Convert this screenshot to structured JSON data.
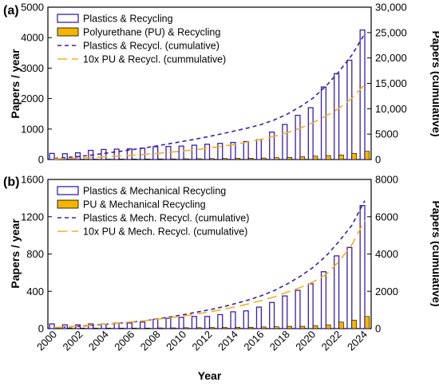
{
  "colors": {
    "plastics_bar": "#3b1fa8",
    "pu_bar_fill": "#f4b400",
    "plastics_cum": "#3b1fa8",
    "pu_cum": "#f0b21b"
  },
  "chart_data": [
    {
      "type": "bar",
      "panel_label": "(a)",
      "categories": [
        "2000",
        "2001",
        "2002",
        "2003",
        "2004",
        "2005",
        "2006",
        "2007",
        "2008",
        "2009",
        "2010",
        "2011",
        "2012",
        "2013",
        "2014",
        "2015",
        "2016",
        "2017",
        "2018",
        "2019",
        "2020",
        "2021",
        "2022",
        "2023",
        "2024"
      ],
      "x_tick_labels": [
        "2000",
        "2002",
        "2004",
        "2006",
        "2008",
        "2010",
        "2012",
        "2014",
        "2016",
        "2018",
        "2020",
        "2022",
        "2024"
      ],
      "xlabel": "Year",
      "ylabel": "Papers / year",
      "ylim": [
        0,
        5000
      ],
      "yticks": [
        0,
        1000,
        2000,
        3000,
        4000,
        5000
      ],
      "y_tick_labels": [
        "0",
        "1000",
        "2000",
        "3000",
        "4000",
        "5000"
      ],
      "y2label": "Papers (cumulative)",
      "y2lim": [
        0,
        30000
      ],
      "y2ticks": [
        0,
        5000,
        10000,
        15000,
        20000,
        25000,
        30000
      ],
      "y2_tick_labels": [
        "0",
        "5000",
        "10,000",
        "15,000",
        "20,000",
        "25,000",
        "30,000"
      ],
      "series": [
        {
          "name": "Plastics & Recycling",
          "kind": "bar",
          "axis": "left",
          "values": [
            200,
            190,
            220,
            300,
            330,
            340,
            350,
            370,
            420,
            430,
            440,
            470,
            500,
            530,
            560,
            590,
            650,
            900,
            1150,
            1450,
            1700,
            2380,
            2820,
            3260,
            4250
          ]
        },
        {
          "name": "Polyurethane (PU) & Recycling",
          "kind": "bar",
          "axis": "left",
          "values": [
            10,
            10,
            10,
            12,
            12,
            15,
            15,
            18,
            20,
            22,
            25,
            28,
            30,
            35,
            40,
            45,
            50,
            60,
            70,
            90,
            110,
            130,
            150,
            200,
            270
          ]
        },
        {
          "name": "Plastics & Recycl. (cumulative)",
          "kind": "line",
          "axis": "right",
          "values": [
            200,
            390,
            610,
            910,
            1240,
            1580,
            1930,
            2300,
            2720,
            3150,
            3590,
            4060,
            4560,
            5090,
            5650,
            6240,
            6890,
            7790,
            8940,
            10390,
            12090,
            14470,
            17290,
            20550,
            24800
          ]
        },
        {
          "name": "10x PU & Recycl. (cummulative)",
          "kind": "line",
          "axis": "right",
          "values": [
            100,
            200,
            300,
            420,
            540,
            690,
            840,
            1020,
            1220,
            1440,
            1690,
            1970,
            2270,
            2620,
            3020,
            3470,
            3970,
            4570,
            5270,
            6170,
            7270,
            8570,
            10070,
            12070,
            14770
          ]
        }
      ]
    },
    {
      "type": "bar",
      "panel_label": "(b)",
      "categories": [
        "2000",
        "2001",
        "2002",
        "2003",
        "2004",
        "2005",
        "2006",
        "2007",
        "2008",
        "2009",
        "2010",
        "2011",
        "2012",
        "2013",
        "2014",
        "2015",
        "2016",
        "2017",
        "2018",
        "2019",
        "2020",
        "2021",
        "2022",
        "2023",
        "2024"
      ],
      "x_tick_labels": [
        "2000",
        "2002",
        "2004",
        "2006",
        "2008",
        "2010",
        "2012",
        "2014",
        "2016",
        "2018",
        "2020",
        "2022",
        "2024"
      ],
      "xlabel": "Year",
      "ylabel": "Papers / year",
      "ylim": [
        0,
        1600
      ],
      "yticks": [
        0,
        400,
        800,
        1200,
        1600
      ],
      "y_tick_labels": [
        "0",
        "400",
        "800",
        "1200",
        "1600"
      ],
      "y2label": "Papers (cumulative)",
      "y2lim": [
        0,
        8000
      ],
      "y2ticks": [
        0,
        2000,
        4000,
        6000,
        8000
      ],
      "y2_tick_labels": [
        "0",
        "2000",
        "4000",
        "6000",
        "8000"
      ],
      "series": [
        {
          "name": "Plastics &  Mechanical Recycling",
          "kind": "bar",
          "axis": "left",
          "values": [
            50,
            40,
            40,
            50,
            50,
            60,
            60,
            70,
            100,
            110,
            120,
            130,
            130,
            150,
            180,
            190,
            230,
            280,
            350,
            410,
            480,
            610,
            780,
            870,
            1320
          ]
        },
        {
          "name": "PU & Mechanical Recycling",
          "kind": "bar",
          "axis": "left",
          "values": [
            5,
            5,
            5,
            5,
            5,
            5,
            6,
            6,
            8,
            8,
            10,
            10,
            12,
            12,
            15,
            15,
            18,
            20,
            25,
            25,
            30,
            40,
            70,
            90,
            130
          ]
        },
        {
          "name": "Plastics & Mech. Recycl. (cumulative)",
          "kind": "line",
          "axis": "right",
          "values": [
            50,
            90,
            130,
            180,
            230,
            290,
            350,
            420,
            520,
            630,
            750,
            880,
            1010,
            1160,
            1340,
            1530,
            1760,
            2040,
            2390,
            2800,
            3280,
            3890,
            4670,
            5540,
            6860
          ]
        },
        {
          "name": "10x  PU & Mech. Recycl. (cumulative)",
          "kind": "line",
          "axis": "right",
          "values": [
            50,
            100,
            150,
            200,
            250,
            300,
            360,
            420,
            500,
            580,
            680,
            780,
            900,
            1020,
            1170,
            1320,
            1500,
            1700,
            1950,
            2200,
            2500,
            2900,
            3600,
            4500,
            5800
          ]
        }
      ]
    }
  ]
}
